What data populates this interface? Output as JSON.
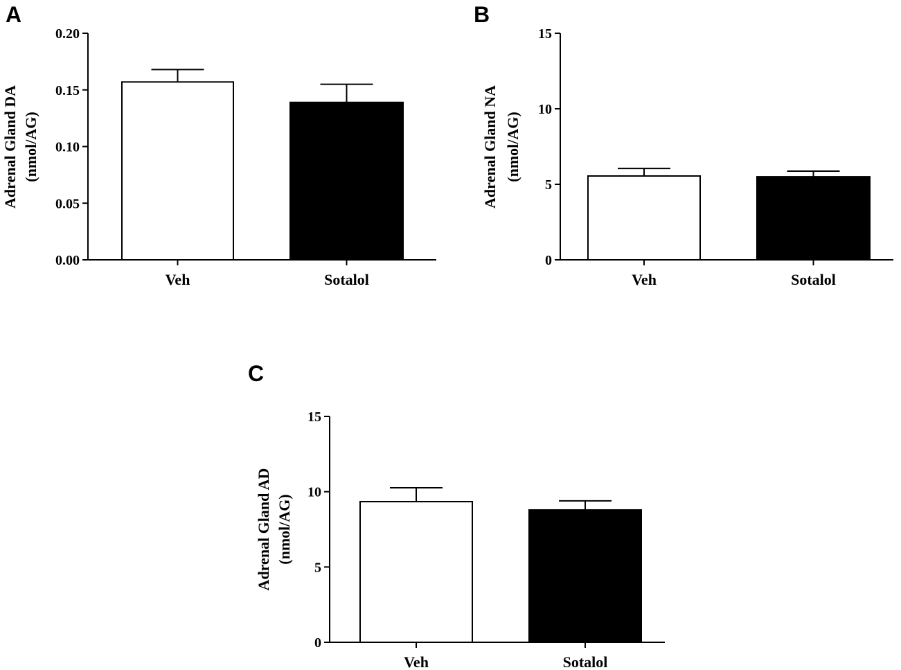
{
  "chart_data": [
    {
      "type": "bar",
      "panel": "A",
      "categories": [
        "Veh",
        "Sotalol"
      ],
      "values": [
        0.157,
        0.139
      ],
      "errors": [
        0.011,
        0.016
      ],
      "colors": [
        "#ffffff",
        "#000000"
      ],
      "ylabel": [
        "Adrenal Gland DA",
        "(nmol/AG)"
      ],
      "ylim": [
        0,
        0.2
      ],
      "yticks": [
        "0.00",
        "0.05",
        "0.10",
        "0.15",
        "0.20"
      ],
      "ytick_values": [
        0,
        0.05,
        0.1,
        0.15,
        0.2
      ],
      "grid": false
    },
    {
      "type": "bar",
      "panel": "B",
      "categories": [
        "Veh",
        "Sotalol"
      ],
      "values": [
        5.55,
        5.5
      ],
      "errors": [
        0.5,
        0.37
      ],
      "colors": [
        "#ffffff",
        "#000000"
      ],
      "ylabel": [
        "Adrenal Gland NA",
        "(nmol/AG)"
      ],
      "ylim": [
        0,
        15
      ],
      "yticks": [
        "0",
        "5",
        "10",
        "15"
      ],
      "ytick_values": [
        0,
        5,
        10,
        15
      ],
      "grid": false
    },
    {
      "type": "bar",
      "panel": "C",
      "categories": [
        "Veh",
        "Sotalol"
      ],
      "values": [
        9.34,
        8.79
      ],
      "errors": [
        0.92,
        0.6
      ],
      "colors": [
        "#ffffff",
        "#000000"
      ],
      "ylabel": [
        "Adrenal Gland AD",
        "(nmol/AG)"
      ],
      "ylim": [
        0,
        15
      ],
      "yticks": [
        "0",
        "5",
        "10",
        "15"
      ],
      "ytick_values": [
        0,
        5,
        10,
        15
      ],
      "grid": false
    }
  ]
}
